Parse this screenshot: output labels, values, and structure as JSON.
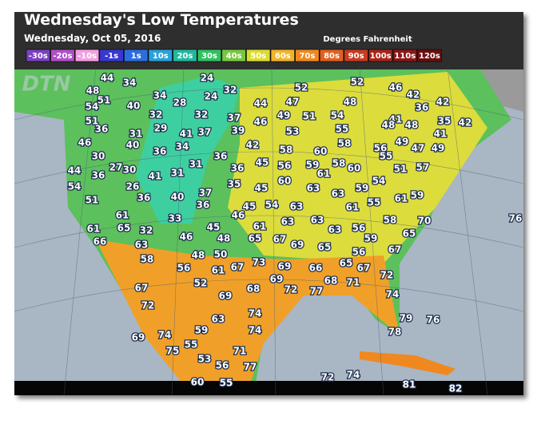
{
  "header": {
    "title": "Wednesday's Low Temperatures",
    "date": "Wednesday, Oct 05, 2016",
    "units": "Degrees Fahrenheit"
  },
  "watermark": "DTN",
  "legend": [
    {
      "label": "-30s",
      "color": "#7b3fc0"
    },
    {
      "label": "-20s",
      "color": "#b050c8"
    },
    {
      "label": "-10s",
      "color": "#f0a0e0"
    },
    {
      "label": "-1s",
      "color": "#3838d0"
    },
    {
      "label": "1s",
      "color": "#2c6ee0"
    },
    {
      "label": "10s",
      "color": "#2aa0d8"
    },
    {
      "label": "20s",
      "color": "#22b89c"
    },
    {
      "label": "30s",
      "color": "#30c060"
    },
    {
      "label": "40s",
      "color": "#78c840"
    },
    {
      "label": "50s",
      "color": "#dcdc30"
    },
    {
      "label": "60s",
      "color": "#f0b428"
    },
    {
      "label": "70s",
      "color": "#f08820"
    },
    {
      "label": "80s",
      "color": "#e06020"
    },
    {
      "label": "90s",
      "color": "#c83c20"
    },
    {
      "label": "100s",
      "color": "#a82418"
    },
    {
      "label": "110s",
      "color": "#8a1818"
    },
    {
      "label": "120s",
      "color": "#6a1010"
    }
  ],
  "temperatures": [
    44,
    34,
    24,
    52,
    52,
    46,
    48,
    51,
    34,
    24,
    32,
    42,
    54,
    40,
    28,
    44,
    47,
    48,
    36,
    42,
    51,
    32,
    32,
    37,
    49,
    51,
    54,
    41,
    48,
    48,
    35,
    42,
    36,
    46,
    29,
    41,
    37,
    39,
    53,
    55,
    31,
    41,
    46,
    40,
    34,
    42,
    58,
    49,
    47,
    49,
    36,
    58,
    60,
    56,
    55,
    30,
    36,
    45,
    56,
    59,
    58,
    60,
    51,
    57,
    27,
    30,
    31,
    36,
    61,
    44,
    36,
    41,
    31,
    60,
    54,
    54,
    26,
    35,
    45,
    63,
    63,
    59,
    61,
    59,
    36,
    40,
    37,
    55,
    51,
    36,
    45,
    54,
    63,
    61,
    46,
    63,
    58,
    70,
    61,
    33,
    76,
    61,
    65,
    32,
    45,
    61,
    63,
    63,
    56,
    65,
    46,
    48,
    65,
    67,
    69,
    59,
    66,
    63,
    65,
    56,
    67,
    50,
    48,
    73,
    58,
    69,
    66,
    65,
    67,
    56,
    61,
    67,
    72,
    69,
    68,
    71,
    52,
    68,
    72,
    77,
    67,
    69,
    74,
    72,
    63,
    74,
    79,
    76,
    59,
    74,
    78,
    69,
    74,
    55,
    75,
    71,
    53,
    56,
    77,
    72,
    74,
    60,
    55,
    81,
    82
  ]
}
